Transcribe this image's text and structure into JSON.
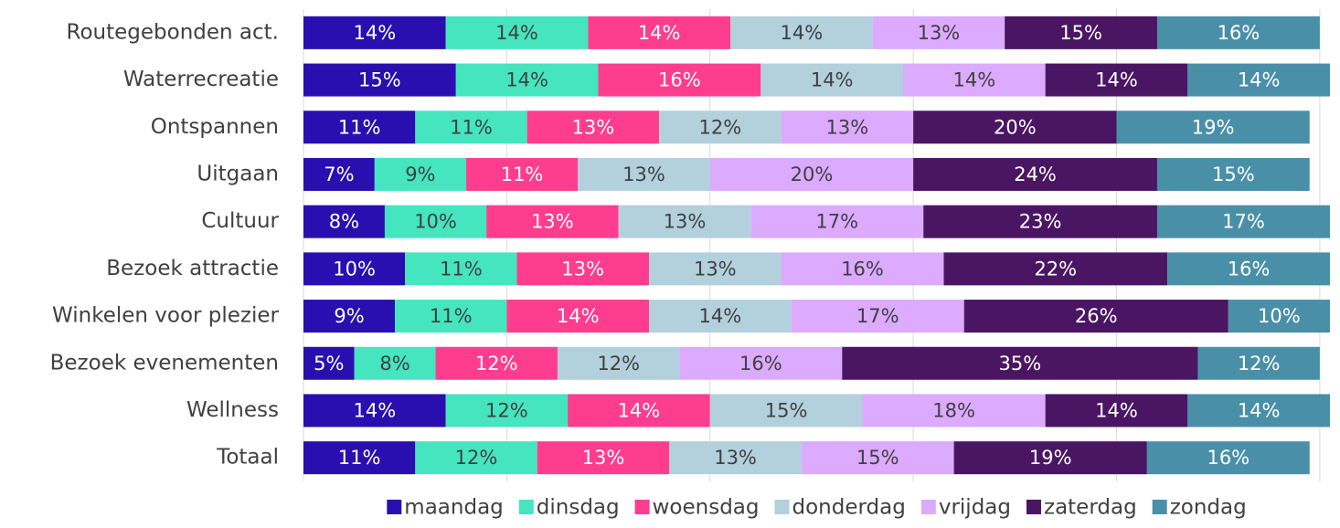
{
  "chart_data": {
    "type": "stacked-bar-horizontal",
    "categories": [
      "Routegebonden act.",
      "Waterrecreatie",
      "Ontspannen",
      "Uitgaan",
      "Cultuur",
      "Bezoek attractie",
      "Winkelen voor plezier",
      "Bezoek evenementen",
      "Wellness",
      "Totaal"
    ],
    "xlim": [
      0,
      101
    ],
    "xticks": [
      0,
      20,
      40,
      60,
      80,
      100
    ],
    "grid": true,
    "legend": "bottom",
    "series": [
      {
        "name": "maandag",
        "color": "#2a0fb0",
        "values": [
          14,
          15,
          11,
          7,
          8,
          10,
          9,
          5,
          14,
          11
        ],
        "value_labels": [
          "14%",
          "15%",
          "11%",
          "7%",
          "8%",
          "10%",
          "9%",
          "5%",
          "14%",
          "11%"
        ]
      },
      {
        "name": "dinsdag",
        "color": "#45e5c0",
        "values": [
          14,
          14,
          11,
          9,
          10,
          11,
          11,
          8,
          12,
          12
        ],
        "value_labels": [
          "14%",
          "14%",
          "11%",
          "9%",
          "10%",
          "11%",
          "11%",
          "8%",
          "12%",
          "12%"
        ]
      },
      {
        "name": "woensdag",
        "color": "#ff3d8f",
        "values": [
          14,
          16,
          13,
          11,
          13,
          13,
          14,
          12,
          14,
          13
        ],
        "value_labels": [
          "14%",
          "16%",
          "13%",
          "11%",
          "13%",
          "13%",
          "14%",
          "12%",
          "14%",
          "13%"
        ]
      },
      {
        "name": "donderdag",
        "color": "#b3d0dd",
        "values": [
          14,
          14,
          12,
          13,
          13,
          13,
          14,
          12,
          15,
          13
        ],
        "value_labels": [
          "14%",
          "14%",
          "12%",
          "13%",
          "13%",
          "13%",
          "14%",
          "12%",
          "15%",
          "13%"
        ]
      },
      {
        "name": "vrijdag",
        "color": "#dcaaff",
        "values": [
          13,
          14,
          13,
          20,
          17,
          16,
          17,
          16,
          18,
          15
        ],
        "value_labels": [
          "13%",
          "14%",
          "13%",
          "20%",
          "17%",
          "16%",
          "17%",
          "16%",
          "18%",
          "15%"
        ]
      },
      {
        "name": "zaterdag",
        "color": "#4a1562",
        "values": [
          15,
          14,
          20,
          24,
          23,
          22,
          26,
          35,
          14,
          19
        ],
        "value_labels": [
          "15%",
          "14%",
          "20%",
          "24%",
          "23%",
          "22%",
          "26%",
          "35%",
          "14%",
          "19%"
        ]
      },
      {
        "name": "zondag",
        "color": "#4a8fa8",
        "values": [
          16,
          14,
          19,
          15,
          17,
          16,
          10,
          12,
          14,
          16
        ],
        "value_labels": [
          "16%",
          "14%",
          "19%",
          "15%",
          "17%",
          "16%",
          "10%",
          "12%",
          "14%",
          "16%"
        ]
      }
    ]
  }
}
